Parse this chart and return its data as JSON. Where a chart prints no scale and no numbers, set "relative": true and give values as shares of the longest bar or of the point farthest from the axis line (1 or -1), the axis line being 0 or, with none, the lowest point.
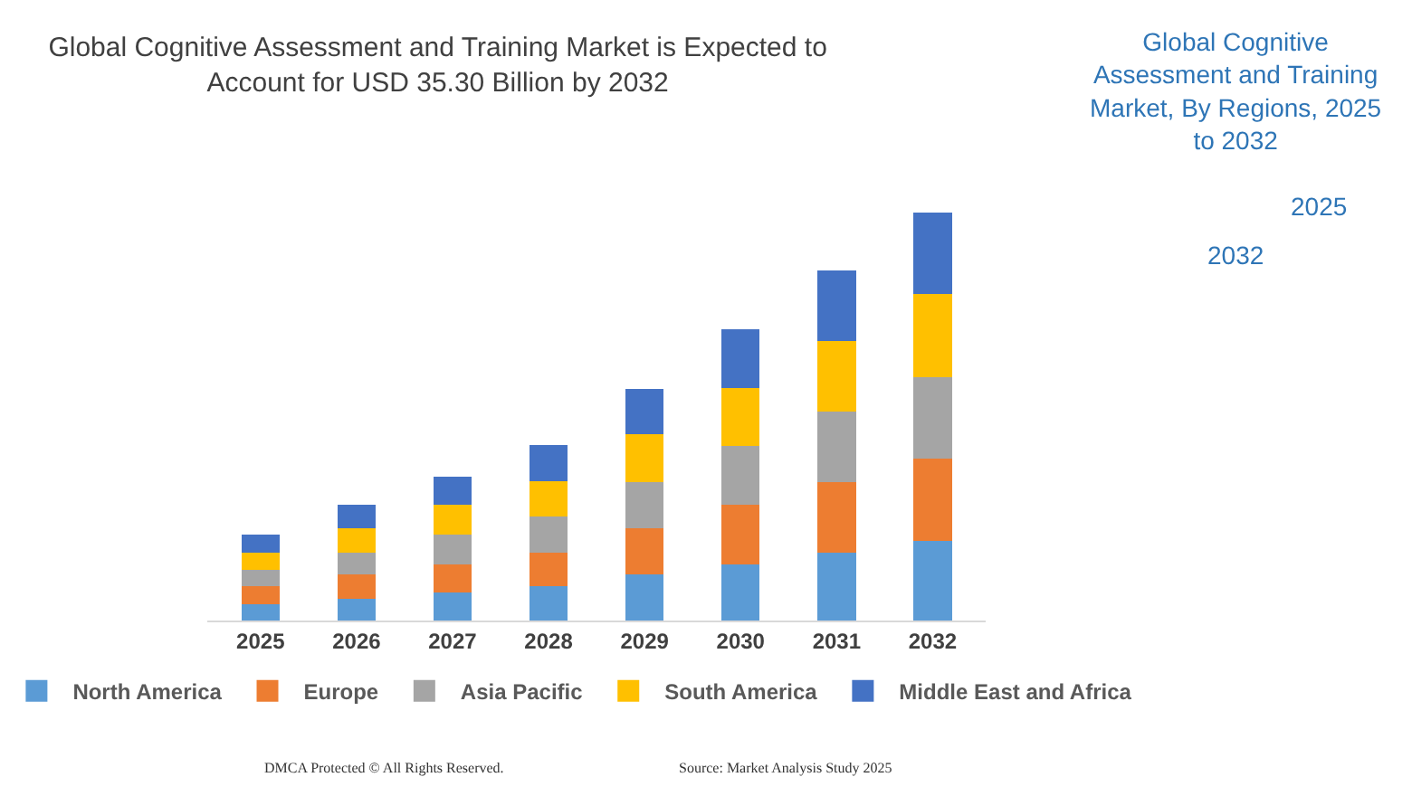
{
  "chart_data": {
    "type": "bar",
    "stacked": true,
    "relative": true,
    "title": "Global Cognitive Assessment and Training Market is Expected to Account for USD 35.30 Billion by 2032",
    "categories": [
      "2025",
      "2026",
      "2027",
      "2028",
      "2029",
      "2030",
      "2031",
      "2032"
    ],
    "series": [
      {
        "name": "North America",
        "color": "#5b9bd5",
        "values": [
          0.04,
          0.054,
          0.069,
          0.084,
          0.113,
          0.138,
          0.167,
          0.196
        ]
      },
      {
        "name": "Europe",
        "color": "#ed7d31",
        "values": [
          0.044,
          0.059,
          0.069,
          0.084,
          0.113,
          0.147,
          0.173,
          0.202
        ]
      },
      {
        "name": "Asia Pacific",
        "color": "#a5a5a5",
        "values": [
          0.04,
          0.054,
          0.073,
          0.087,
          0.114,
          0.144,
          0.173,
          0.198
        ]
      },
      {
        "name": "South America",
        "color": "#ffc000",
        "values": [
          0.044,
          0.059,
          0.073,
          0.087,
          0.117,
          0.142,
          0.172,
          0.205
        ]
      },
      {
        "name": "Middle East and Africa",
        "color": "#4472c4",
        "values": [
          0.044,
          0.059,
          0.07,
          0.088,
          0.111,
          0.144,
          0.174,
          0.199
        ]
      }
    ],
    "legend": "bottom",
    "annotations": [
      "Global Cognitive Assessment and Training Market, By Regions, 2025 to 2032",
      "2025",
      "2032",
      "DMCA Protected © All Rights Reserved.",
      "Source: Market Analysis Study 2025"
    ]
  }
}
